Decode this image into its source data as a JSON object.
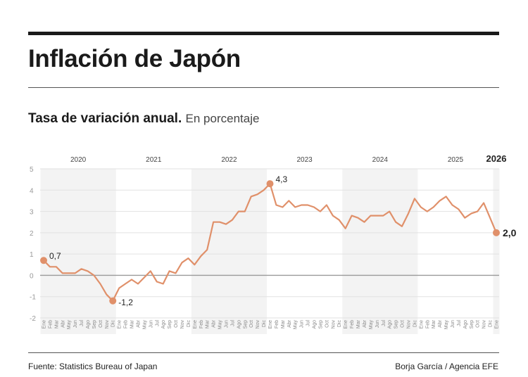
{
  "title": "Inflación de Japón",
  "subtitle": {
    "main": "Tasa de variación anual.",
    "unit": "En porcentaje"
  },
  "footer": {
    "source": "Fuente: Statistics Bureau of Japan",
    "credit": "Borja García / Agencia EFE"
  },
  "chart_data": {
    "type": "line",
    "years": [
      "2020",
      "2021",
      "2022",
      "2023",
      "2024",
      "2025",
      "2026"
    ],
    "month_labels": [
      "Ene",
      "Feb",
      "Mar",
      "Abr",
      "May",
      "Jun",
      "Jul",
      "Ago",
      "Sep",
      "Oct",
      "Nov",
      "Dic"
    ],
    "y_ticks": [
      "5",
      "4",
      "3",
      "2",
      "1",
      "0",
      "-1",
      "-2"
    ],
    "ylim": [
      -2,
      5
    ],
    "grid": true,
    "line_color": "#e0906a",
    "values": [
      0.7,
      0.4,
      0.4,
      0.1,
      0.1,
      0.1,
      0.3,
      0.2,
      0.0,
      -0.4,
      -0.9,
      -1.2,
      -0.6,
      -0.4,
      -0.2,
      -0.4,
      -0.1,
      0.2,
      -0.3,
      -0.4,
      0.2,
      0.1,
      0.6,
      0.8,
      0.5,
      0.9,
      1.2,
      2.5,
      2.5,
      2.4,
      2.6,
      3.0,
      3.0,
      3.7,
      3.8,
      4.0,
      4.3,
      3.3,
      3.2,
      3.5,
      3.2,
      3.3,
      3.3,
      3.2,
      3.0,
      3.3,
      2.8,
      2.6,
      2.2,
      2.8,
      2.7,
      2.5,
      2.8,
      2.8,
      2.8,
      3.0,
      2.5,
      2.3,
      2.9,
      3.6,
      3.2,
      3.0,
      3.2,
      3.5,
      3.7,
      3.3,
      3.1,
      2.7,
      2.9,
      3.0,
      3.4,
      2.7,
      2.0
    ],
    "annotations": [
      {
        "index": 0,
        "label": "0,7"
      },
      {
        "index": 11,
        "label": "-1,2"
      },
      {
        "index": 36,
        "label": "4,3"
      },
      {
        "index": 72,
        "label": "2,0"
      }
    ]
  }
}
